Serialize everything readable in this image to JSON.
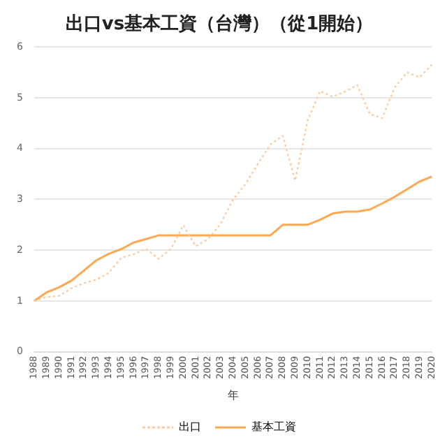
{
  "chart_data": {
    "type": "line",
    "title": "出口vs基本工資（台灣）（從1開始）",
    "xlabel": "年",
    "categories": [
      "1988",
      "1989",
      "1990",
      "1991",
      "1992",
      "1993",
      "1994",
      "1995",
      "1996",
      "1997",
      "1998",
      "1999",
      "2000",
      "2001",
      "2002",
      "2003",
      "2004",
      "2005",
      "2006",
      "2007",
      "2008",
      "2009",
      "2010",
      "2011",
      "2012",
      "2013",
      "2014",
      "2015",
      "2016",
      "2017",
      "2018",
      "2019",
      "2020"
    ],
    "series": [
      {
        "name": "出口",
        "color": "#ffcb9e",
        "line_style": "dotted",
        "values": [
          1,
          1.08,
          1.1,
          1.25,
          1.35,
          1.42,
          1.55,
          1.85,
          1.92,
          2.03,
          1.83,
          2.02,
          2.49,
          2.08,
          2.22,
          2.52,
          3.0,
          3.3,
          3.7,
          4.08,
          4.25,
          3.37,
          4.55,
          5.13,
          5.02,
          5.12,
          5.25,
          4.68,
          4.6,
          5.2,
          5.5,
          5.4,
          5.65
        ]
      },
      {
        "name": "基本工資",
        "color": "#ffa852",
        "line_style": "solid",
        "values": [
          1,
          1.17,
          1.27,
          1.4,
          1.6,
          1.8,
          1.93,
          2.02,
          2.15,
          2.22,
          2.29,
          2.29,
          2.29,
          2.29,
          2.29,
          2.29,
          2.29,
          2.29,
          2.29,
          2.29,
          2.5,
          2.5,
          2.5,
          2.6,
          2.72,
          2.76,
          2.76,
          2.8,
          2.92,
          3.05,
          3.2,
          3.35,
          3.45
        ]
      }
    ],
    "ylim": [
      0,
      6
    ],
    "yticks": [
      0,
      1,
      2,
      3,
      4,
      5,
      6
    ],
    "grid": "y",
    "legend": "bottom",
    "marker": "none"
  }
}
